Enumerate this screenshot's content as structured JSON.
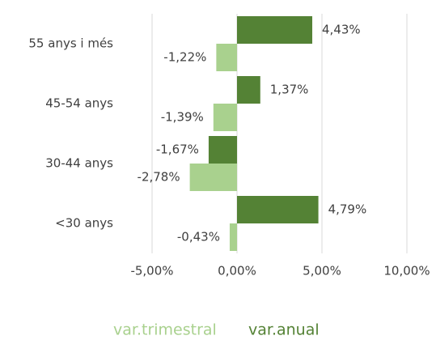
{
  "chart_data": {
    "type": "hbar",
    "categories": [
      "55 anys i més",
      "45-54 anys",
      "30-44 anys",
      "<30 anys"
    ],
    "series": [
      {
        "name": "var.trimestral",
        "color": "#a9d18e",
        "values": [
          -1.22,
          -1.39,
          -2.78,
          -0.43
        ],
        "value_labels": [
          "-1,22%",
          "-1,39%",
          "-2,78%",
          "-0,43%"
        ]
      },
      {
        "name": "var.anual",
        "color": "#548235",
        "values": [
          4.43,
          1.37,
          -1.67,
          4.79
        ],
        "value_labels": [
          "4,43%",
          "1,37%",
          "-1,67%",
          "4,79%"
        ]
      }
    ],
    "xlim": [
      -5,
      10
    ],
    "xticks": [
      {
        "value": -5,
        "label": "-5,00%"
      },
      {
        "value": 0,
        "label": "0,00%"
      },
      {
        "value": 5,
        "label": "5,00%"
      },
      {
        "value": 10,
        "label": "10,00%"
      }
    ],
    "grid": true,
    "legend": "bottom"
  }
}
